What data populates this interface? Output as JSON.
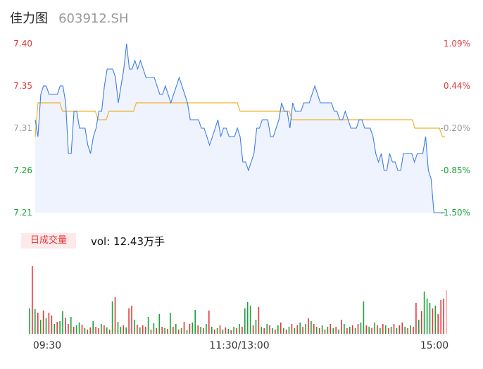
{
  "header": {
    "name": "佳力图",
    "code": "603912.SH"
  },
  "chart_data": {
    "type": "line",
    "price_axis": {
      "ticks": [
        {
          "label": "7.40",
          "value": 7.4,
          "color": "#e2373a"
        },
        {
          "label": "7.35",
          "value": 7.35,
          "color": "#e2373a"
        },
        {
          "label": "7.31",
          "value": 7.31,
          "color": "#999999"
        },
        {
          "label": "7.26",
          "value": 7.26,
          "color": "#1aa33c"
        },
        {
          "label": "7.21",
          "value": 7.21,
          "color": "#1aa33c"
        }
      ],
      "ylim": [
        7.21,
        7.41
      ]
    },
    "pct_axis": {
      "ticks": [
        {
          "label": "1.09%",
          "color": "#e2373a"
        },
        {
          "label": "0.44%",
          "color": "#e2373a"
        },
        {
          "label": "-0.20%",
          "color": "#999999"
        },
        {
          "label": "-0.85%",
          "color": "#1aa33c"
        },
        {
          "label": "-1.50%",
          "color": "#1aa33c"
        }
      ]
    },
    "time_labels": [
      "09:30",
      "11:30/13:00",
      "15:00"
    ],
    "series": [
      {
        "color": "#3d7ce6",
        "values": [
          7.32,
          7.3,
          7.35,
          7.36,
          7.36,
          7.35,
          7.35,
          7.35,
          7.35,
          7.36,
          7.36,
          7.34,
          7.28,
          7.28,
          7.33,
          7.33,
          7.31,
          7.31,
          7.31,
          7.29,
          7.28,
          7.3,
          7.31,
          7.33,
          7.33,
          7.36,
          7.38,
          7.38,
          7.38,
          7.37,
          7.34,
          7.36,
          7.38,
          7.41,
          7.38,
          7.38,
          7.39,
          7.38,
          7.39,
          7.38,
          7.37,
          7.37,
          7.37,
          7.37,
          7.36,
          7.35,
          7.35,
          7.36,
          7.35,
          7.34,
          7.35,
          7.36,
          7.37,
          7.36,
          7.35,
          7.34,
          7.32,
          7.32,
          7.32,
          7.32,
          7.31,
          7.31,
          7.3,
          7.29,
          7.3,
          7.31,
          7.32,
          7.3,
          7.31,
          7.31,
          7.3,
          7.3,
          7.3,
          7.31,
          7.3,
          7.27,
          7.27,
          7.26,
          7.27,
          7.28,
          7.31,
          7.31,
          7.32,
          7.32,
          7.32,
          7.3,
          7.3,
          7.31,
          7.32,
          7.34,
          7.33,
          7.33,
          7.31,
          7.34,
          7.33,
          7.33,
          7.33,
          7.34,
          7.34,
          7.34,
          7.35,
          7.36,
          7.35,
          7.34,
          7.34,
          7.34,
          7.34,
          7.34,
          7.33,
          7.33,
          7.32,
          7.32,
          7.33,
          7.32,
          7.31,
          7.31,
          7.31,
          7.32,
          7.32,
          7.31,
          7.31,
          7.31,
          7.3,
          7.28,
          7.27,
          7.28,
          7.26,
          7.26,
          7.28,
          7.27,
          7.27,
          7.26,
          7.26,
          7.28,
          7.28,
          7.28,
          7.28,
          7.27,
          7.28,
          7.28,
          7.28,
          7.3,
          7.26,
          7.25,
          7.21,
          7.21,
          7.21,
          7.21,
          7.21
        ]
      },
      {
        "color": "#f2b22a",
        "values": [
          7.3,
          7.34,
          7.34,
          7.34,
          7.34,
          7.34,
          7.34,
          7.34,
          7.34,
          7.34,
          7.33,
          7.33,
          7.33,
          7.33,
          7.33,
          7.33,
          7.33,
          7.33,
          7.33,
          7.33,
          7.33,
          7.33,
          7.33,
          7.32,
          7.32,
          7.32,
          7.32,
          7.33,
          7.33,
          7.33,
          7.33,
          7.33,
          7.33,
          7.33,
          7.33,
          7.33,
          7.33,
          7.34,
          7.34,
          7.34,
          7.34,
          7.34,
          7.34,
          7.34,
          7.34,
          7.34,
          7.34,
          7.34,
          7.34,
          7.34,
          7.34,
          7.34,
          7.34,
          7.34,
          7.34,
          7.34,
          7.34,
          7.34,
          7.34,
          7.34,
          7.34,
          7.34,
          7.34,
          7.34,
          7.34,
          7.34,
          7.34,
          7.34,
          7.34,
          7.34,
          7.34,
          7.34,
          7.34,
          7.34,
          7.34,
          7.33,
          7.33,
          7.33,
          7.33,
          7.33,
          7.33,
          7.33,
          7.33,
          7.33,
          7.33,
          7.33,
          7.33,
          7.33,
          7.33,
          7.33,
          7.33,
          7.33,
          7.33,
          7.33,
          7.32,
          7.32,
          7.32,
          7.32,
          7.32,
          7.32,
          7.32,
          7.32,
          7.32,
          7.32,
          7.32,
          7.32,
          7.32,
          7.32,
          7.32,
          7.32,
          7.32,
          7.32,
          7.32,
          7.32,
          7.32,
          7.32,
          7.32,
          7.32,
          7.32,
          7.32,
          7.32,
          7.32,
          7.32,
          7.32,
          7.32,
          7.32,
          7.32,
          7.32,
          7.32,
          7.32,
          7.32,
          7.32,
          7.32,
          7.32,
          7.32,
          7.32,
          7.32,
          7.32,
          7.32,
          7.31,
          7.31,
          7.31,
          7.31,
          7.31,
          7.31,
          7.31,
          7.31,
          7.31,
          7.31,
          7.3,
          7.3
        ]
      }
    ],
    "volume": {
      "tag": "日成交量",
      "label": "vol: 12.43万手",
      "up_color": "#e2373a",
      "down_color": "#1aa33c",
      "bars": [
        {
          "v": 36,
          "d": "down"
        },
        {
          "v": 96,
          "d": "up"
        },
        {
          "v": 35,
          "d": "down"
        },
        {
          "v": 30,
          "d": "up"
        },
        {
          "v": 20,
          "d": "down"
        },
        {
          "v": 33,
          "d": "up"
        },
        {
          "v": 22,
          "d": "down"
        },
        {
          "v": 30,
          "d": "up"
        },
        {
          "v": 26,
          "d": "up"
        },
        {
          "v": 14,
          "d": "down"
        },
        {
          "v": 17,
          "d": "up"
        },
        {
          "v": 18,
          "d": "down"
        },
        {
          "v": 32,
          "d": "down"
        },
        {
          "v": 23,
          "d": "up"
        },
        {
          "v": 14,
          "d": "up"
        },
        {
          "v": 24,
          "d": "down"
        },
        {
          "v": 10,
          "d": "up"
        },
        {
          "v": 12,
          "d": "down"
        },
        {
          "v": 16,
          "d": "down"
        },
        {
          "v": 13,
          "d": "up"
        },
        {
          "v": 8,
          "d": "down"
        },
        {
          "v": 6,
          "d": "up"
        },
        {
          "v": 9,
          "d": "up"
        },
        {
          "v": 18,
          "d": "down"
        },
        {
          "v": 10,
          "d": "up"
        },
        {
          "v": 8,
          "d": "up"
        },
        {
          "v": 14,
          "d": "down"
        },
        {
          "v": 12,
          "d": "up"
        },
        {
          "v": 9,
          "d": "down"
        },
        {
          "v": 6,
          "d": "up"
        },
        {
          "v": 46,
          "d": "down"
        },
        {
          "v": 52,
          "d": "up"
        },
        {
          "v": 17,
          "d": "down"
        },
        {
          "v": 10,
          "d": "down"
        },
        {
          "v": 12,
          "d": "up"
        },
        {
          "v": 9,
          "d": "down"
        },
        {
          "v": 36,
          "d": "up"
        },
        {
          "v": 40,
          "d": "red"
        },
        {
          "v": 20,
          "d": "down"
        },
        {
          "v": 13,
          "d": "up"
        },
        {
          "v": 9,
          "d": "down"
        },
        {
          "v": 12,
          "d": "up"
        },
        {
          "v": 10,
          "d": "up"
        },
        {
          "v": 24,
          "d": "down"
        },
        {
          "v": 6,
          "d": "up"
        },
        {
          "v": 15,
          "d": "down"
        },
        {
          "v": 8,
          "d": "up"
        },
        {
          "v": 28,
          "d": "down"
        },
        {
          "v": 10,
          "d": "up"
        },
        {
          "v": 8,
          "d": "down"
        },
        {
          "v": 7,
          "d": "up"
        },
        {
          "v": 30,
          "d": "down"
        },
        {
          "v": 10,
          "d": "up"
        },
        {
          "v": 14,
          "d": "down"
        },
        {
          "v": 6,
          "d": "up"
        },
        {
          "v": 8,
          "d": "down"
        },
        {
          "v": 17,
          "d": "up"
        },
        {
          "v": 5,
          "d": "down"
        },
        {
          "v": 14,
          "d": "up"
        },
        {
          "v": 16,
          "d": "down"
        },
        {
          "v": 34,
          "d": "down"
        },
        {
          "v": 12,
          "d": "up"
        },
        {
          "v": 10,
          "d": "down"
        },
        {
          "v": 8,
          "d": "up"
        },
        {
          "v": 14,
          "d": "down"
        },
        {
          "v": 33,
          "d": "up"
        },
        {
          "v": 10,
          "d": "down"
        },
        {
          "v": 6,
          "d": "up"
        },
        {
          "v": 8,
          "d": "down"
        },
        {
          "v": 12,
          "d": "up"
        },
        {
          "v": 6,
          "d": "down"
        },
        {
          "v": 9,
          "d": "up"
        },
        {
          "v": 7,
          "d": "down"
        },
        {
          "v": 5,
          "d": "up"
        },
        {
          "v": 10,
          "d": "down"
        },
        {
          "v": 8,
          "d": "up"
        },
        {
          "v": 14,
          "d": "down"
        },
        {
          "v": 10,
          "d": "up"
        },
        {
          "v": 36,
          "d": "down"
        },
        {
          "v": 45,
          "d": "down"
        },
        {
          "v": 40,
          "d": "down"
        },
        {
          "v": 12,
          "d": "up"
        },
        {
          "v": 20,
          "d": "down"
        },
        {
          "v": 38,
          "d": "up"
        },
        {
          "v": 10,
          "d": "down"
        },
        {
          "v": 8,
          "d": "up"
        },
        {
          "v": 14,
          "d": "down"
        },
        {
          "v": 12,
          "d": "up"
        },
        {
          "v": 8,
          "d": "down"
        },
        {
          "v": 6,
          "d": "up"
        },
        {
          "v": 12,
          "d": "down"
        },
        {
          "v": 16,
          "d": "up"
        },
        {
          "v": 8,
          "d": "down"
        },
        {
          "v": 6,
          "d": "up"
        },
        {
          "v": 10,
          "d": "down"
        },
        {
          "v": 14,
          "d": "up"
        },
        {
          "v": 8,
          "d": "down"
        },
        {
          "v": 12,
          "d": "up"
        },
        {
          "v": 16,
          "d": "down"
        },
        {
          "v": 10,
          "d": "up"
        },
        {
          "v": 14,
          "d": "down"
        },
        {
          "v": 22,
          "d": "up"
        },
        {
          "v": 18,
          "d": "down"
        },
        {
          "v": 14,
          "d": "up"
        },
        {
          "v": 10,
          "d": "down"
        },
        {
          "v": 8,
          "d": "up"
        },
        {
          "v": 12,
          "d": "down"
        },
        {
          "v": 6,
          "d": "up"
        },
        {
          "v": 10,
          "d": "down"
        },
        {
          "v": 14,
          "d": "up"
        },
        {
          "v": 8,
          "d": "down"
        },
        {
          "v": 10,
          "d": "up"
        },
        {
          "v": 6,
          "d": "down"
        },
        {
          "v": 20,
          "d": "up"
        },
        {
          "v": 14,
          "d": "down"
        },
        {
          "v": 8,
          "d": "up"
        },
        {
          "v": 10,
          "d": "down"
        },
        {
          "v": 12,
          "d": "up"
        },
        {
          "v": 8,
          "d": "down"
        },
        {
          "v": 14,
          "d": "up"
        },
        {
          "v": 16,
          "d": "down"
        },
        {
          "v": 46,
          "d": "down"
        },
        {
          "v": 12,
          "d": "up"
        },
        {
          "v": 10,
          "d": "down"
        },
        {
          "v": 8,
          "d": "up"
        },
        {
          "v": 16,
          "d": "down"
        },
        {
          "v": 12,
          "d": "up"
        },
        {
          "v": 8,
          "d": "down"
        },
        {
          "v": 14,
          "d": "up"
        },
        {
          "v": 12,
          "d": "down"
        },
        {
          "v": 8,
          "d": "up"
        },
        {
          "v": 10,
          "d": "down"
        },
        {
          "v": 14,
          "d": "up"
        },
        {
          "v": 8,
          "d": "down"
        },
        {
          "v": 12,
          "d": "up"
        },
        {
          "v": 16,
          "d": "up"
        },
        {
          "v": 10,
          "d": "down"
        },
        {
          "v": 8,
          "d": "up"
        },
        {
          "v": 12,
          "d": "down"
        },
        {
          "v": 10,
          "d": "up"
        },
        {
          "v": 44,
          "d": "up"
        },
        {
          "v": 20,
          "d": "down"
        },
        {
          "v": 32,
          "d": "up"
        },
        {
          "v": 60,
          "d": "down"
        },
        {
          "v": 50,
          "d": "down"
        },
        {
          "v": 44,
          "d": "down"
        },
        {
          "v": 36,
          "d": "up"
        },
        {
          "v": 40,
          "d": "down"
        },
        {
          "v": 28,
          "d": "up"
        },
        {
          "v": 48,
          "d": "up"
        },
        {
          "v": 50,
          "d": "up"
        },
        {
          "v": 62,
          "d": "pink"
        }
      ]
    }
  }
}
